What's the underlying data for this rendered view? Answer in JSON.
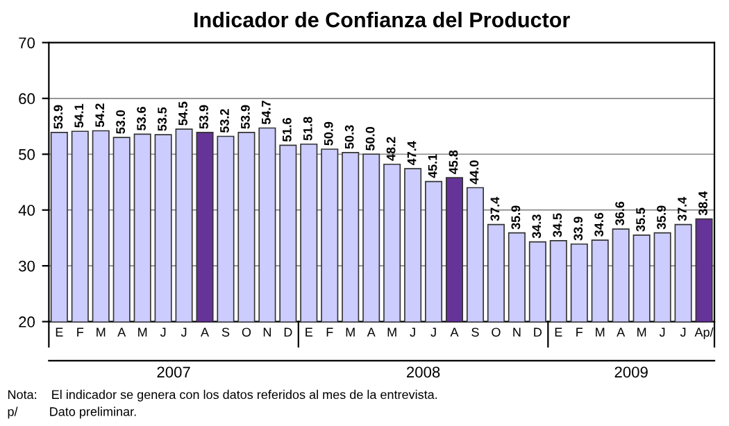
{
  "chart_data": {
    "type": "bar",
    "title": "Indicador de Confianza del Productor",
    "categories": [
      "E",
      "F",
      "M",
      "A",
      "M",
      "J",
      "J",
      "A",
      "S",
      "O",
      "N",
      "D",
      "E",
      "F",
      "M",
      "A",
      "M",
      "J",
      "J",
      "A",
      "S",
      "O",
      "N",
      "D",
      "E",
      "F",
      "M",
      "A",
      "M",
      "J",
      "J",
      "Ap/"
    ],
    "values": [
      53.9,
      54.1,
      54.2,
      53.0,
      53.6,
      53.5,
      54.5,
      53.9,
      53.2,
      53.9,
      54.7,
      51.6,
      51.8,
      50.9,
      50.3,
      50.0,
      48.2,
      47.4,
      45.1,
      45.8,
      44.0,
      37.4,
      35.9,
      34.3,
      34.5,
      33.9,
      34.6,
      36.6,
      35.5,
      35.9,
      37.4,
      38.4
    ],
    "value_labels": [
      "53.9",
      "54.1",
      "54.2",
      "53.0",
      "53.6",
      "53.5",
      "54.5",
      "53.9",
      "53.2",
      "53.9",
      "54.7",
      "51.6",
      "51.8",
      "50.9",
      "50.3",
      "50.0",
      "48.2",
      "47.4",
      "45.1",
      "45.8",
      "44.0",
      "37.4",
      "35.9",
      "34.3",
      "34.5",
      "33.9",
      "34.6",
      "36.6",
      "35.5",
      "35.9",
      "37.4",
      "38.4"
    ],
    "colors": [
      "#ccccff",
      "#ccccff",
      "#ccccff",
      "#ccccff",
      "#ccccff",
      "#ccccff",
      "#ccccff",
      "#663399",
      "#ccccff",
      "#ccccff",
      "#ccccff",
      "#ccccff",
      "#ccccff",
      "#ccccff",
      "#ccccff",
      "#ccccff",
      "#ccccff",
      "#ccccff",
      "#ccccff",
      "#663399",
      "#ccccff",
      "#ccccff",
      "#ccccff",
      "#ccccff",
      "#ccccff",
      "#ccccff",
      "#ccccff",
      "#ccccff",
      "#ccccff",
      "#ccccff",
      "#ccccff",
      "#663399"
    ],
    "ylim": [
      20,
      70
    ],
    "yticks": [
      20,
      30,
      40,
      50,
      60,
      70
    ],
    "grid": "y",
    "annotations": [
      "2007",
      "2008",
      "2009",
      "Nota:    El indicador se genera con los datos referidos al mes de la entrevista.",
      "p/         Dato preliminar."
    ]
  }
}
